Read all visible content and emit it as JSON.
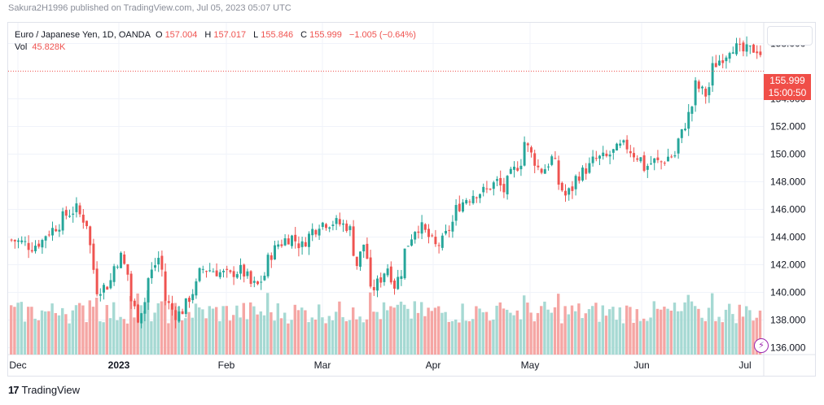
{
  "header": {
    "published_text": "Sakura2H1996 published on TradingView.com, Jul 05, 2023 05:07 UTC"
  },
  "legend": {
    "instrument": "Euro / Japanese Yen, 1D, OANDA",
    "o_label": "O",
    "o_value": "157.004",
    "h_label": "H",
    "h_value": "157.017",
    "l_label": "L",
    "l_value": "155.846",
    "c_label": "C",
    "c_value": "155.999",
    "change": "−1.005 (−0.64%)",
    "vol_label": "Vol",
    "vol_value": "45.828K"
  },
  "price_box": {
    "price": "155.999",
    "countdown": "15:00:50"
  },
  "branding": {
    "logo": "17",
    "name": "TradingView"
  },
  "colors": {
    "up": "#26a69a",
    "down": "#ef5350",
    "up_vol": "#a6d9d3",
    "down_vol": "#f5a6a4"
  },
  "chart_data": {
    "type": "candlestick",
    "symbol": "EURJPY",
    "interval": "1D",
    "y_ticks": [
      "136.000",
      "138.000",
      "140.000",
      "142.000",
      "144.000",
      "146.000",
      "148.000",
      "150.000",
      "152.000",
      "154.000",
      "158.000"
    ],
    "y_range": [
      135.5,
      159.5
    ],
    "x_tick_labels": [
      "Dec",
      "2023",
      "Feb",
      "Mar",
      "Apr",
      "May",
      "Jun",
      "Jul"
    ],
    "last_price": 155.999,
    "close_path": [
      {
        "d": 0,
        "c": 143.8
      },
      {
        "d": 8,
        "c": 143.3
      },
      {
        "d": 14,
        "c": 144.2
      },
      {
        "d": 20,
        "c": 145.3
      },
      {
        "d": 26,
        "c": 146.2
      },
      {
        "d": 30,
        "c": 145.0
      },
      {
        "d": 33,
        "c": 140.0
      },
      {
        "d": 38,
        "c": 140.5
      },
      {
        "d": 44,
        "c": 142.6
      },
      {
        "d": 48,
        "c": 140.0
      },
      {
        "d": 51,
        "c": 138.2
      },
      {
        "d": 55,
        "c": 140.5
      },
      {
        "d": 59,
        "c": 142.5
      },
      {
        "d": 62,
        "c": 139.8
      },
      {
        "d": 66,
        "c": 138.4
      },
      {
        "d": 70,
        "c": 138.7
      },
      {
        "d": 74,
        "c": 140.5
      },
      {
        "d": 78,
        "c": 141.7
      },
      {
        "d": 84,
        "c": 141.5
      },
      {
        "d": 88,
        "c": 141.2
      },
      {
        "d": 93,
        "c": 141.6
      },
      {
        "d": 97,
        "c": 140.6
      },
      {
        "d": 100,
        "c": 140.5
      },
      {
        "d": 104,
        "c": 142.0
      },
      {
        "d": 108,
        "c": 143.5
      },
      {
        "d": 114,
        "c": 144.0
      },
      {
        "d": 118,
        "c": 143.0
      },
      {
        "d": 122,
        "c": 144.5
      },
      {
        "d": 126,
        "c": 145.0
      },
      {
        "d": 132,
        "c": 145.1
      },
      {
        "d": 136,
        "c": 144.8
      },
      {
        "d": 139,
        "c": 144.0
      },
      {
        "d": 141,
        "c": 142.0
      },
      {
        "d": 143,
        "c": 143.5
      },
      {
        "d": 145,
        "c": 141.5
      },
      {
        "d": 147,
        "c": 140.0
      },
      {
        "d": 150,
        "c": 141.0
      },
      {
        "d": 153,
        "c": 142.5
      },
      {
        "d": 156,
        "c": 140.5
      },
      {
        "d": 160,
        "c": 142.5
      },
      {
        "d": 164,
        "c": 144.6
      },
      {
        "d": 167,
        "c": 145.0
      },
      {
        "d": 170,
        "c": 144.0
      },
      {
        "d": 173,
        "c": 143.0
      },
      {
        "d": 176,
        "c": 143.7
      },
      {
        "d": 180,
        "c": 145.5
      },
      {
        "d": 185,
        "c": 146.8
      },
      {
        "d": 190,
        "c": 147.2
      },
      {
        "d": 195,
        "c": 147.5
      },
      {
        "d": 198,
        "c": 148.0
      },
      {
        "d": 201,
        "c": 147.0
      },
      {
        "d": 204,
        "c": 148.5
      },
      {
        "d": 207,
        "c": 149.5
      },
      {
        "d": 210,
        "c": 150.9
      },
      {
        "d": 213,
        "c": 149.5
      },
      {
        "d": 215,
        "c": 148.5
      },
      {
        "d": 218,
        "c": 149.0
      },
      {
        "d": 220,
        "c": 149.7
      },
      {
        "d": 223,
        "c": 148.3
      },
      {
        "d": 226,
        "c": 147.0
      },
      {
        "d": 229,
        "c": 147.8
      },
      {
        "d": 232,
        "c": 148.5
      },
      {
        "d": 236,
        "c": 149.3
      },
      {
        "d": 240,
        "c": 149.7
      },
      {
        "d": 244,
        "c": 149.8
      },
      {
        "d": 248,
        "c": 150.5
      },
      {
        "d": 251,
        "c": 150.8
      },
      {
        "d": 254,
        "c": 150.0
      },
      {
        "d": 257,
        "c": 149.5
      },
      {
        "d": 259,
        "c": 149.0
      },
      {
        "d": 262,
        "c": 149.5
      },
      {
        "d": 265,
        "c": 149.2
      },
      {
        "d": 268,
        "c": 149.8
      },
      {
        "d": 271,
        "c": 150.0
      },
      {
        "d": 274,
        "c": 151.5
      },
      {
        "d": 277,
        "c": 153.5
      },
      {
        "d": 280,
        "c": 155.0
      },
      {
        "d": 283,
        "c": 154.3
      },
      {
        "d": 286,
        "c": 156.0
      },
      {
        "d": 289,
        "c": 156.8
      },
      {
        "d": 292,
        "c": 157.5
      },
      {
        "d": 295,
        "c": 157.8
      },
      {
        "d": 298,
        "c": 157.4
      },
      {
        "d": 301,
        "c": 157.5
      },
      {
        "d": 304,
        "c": 157.6
      },
      {
        "d": 306,
        "c": 157.0
      },
      {
        "d": 307,
        "c": 155.999
      }
    ]
  }
}
